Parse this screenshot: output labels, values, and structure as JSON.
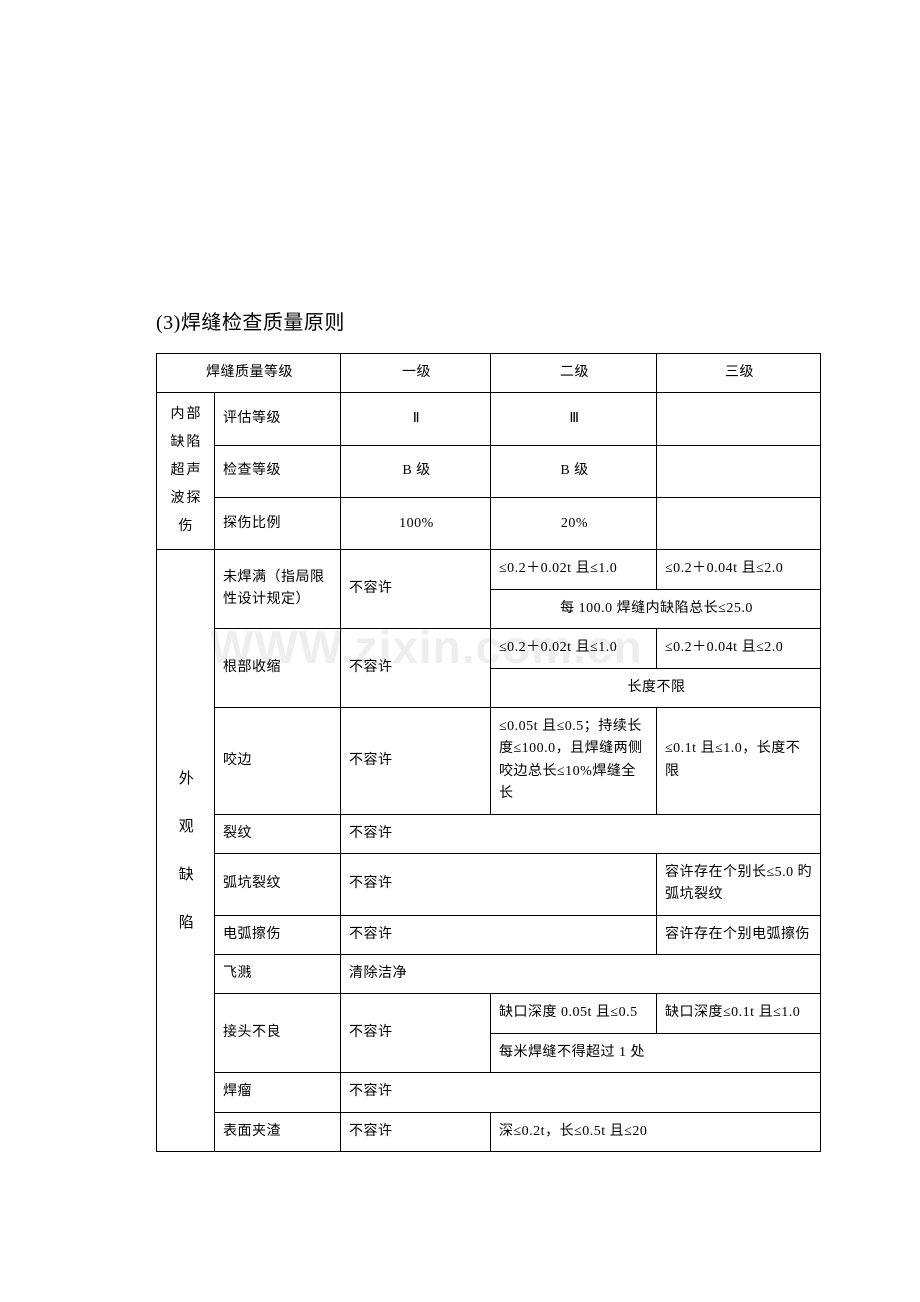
{
  "heading": "(3)焊缝检查质量原则",
  "watermark": "WWW.zixin.com.cn",
  "header": {
    "quality_grade": "焊缝质量等级",
    "level1": "一级",
    "level2": "二级",
    "level3": "三级"
  },
  "internal_defects": {
    "group_label": "内部缺陷超声波探伤",
    "rows": {
      "eval_grade": {
        "label": "评估等级",
        "l1": "Ⅱ",
        "l2": "Ⅲ",
        "l3": ""
      },
      "inspect_grade": {
        "label": "检查等级",
        "l1": "B 级",
        "l2": "B 级",
        "l3": ""
      },
      "ratio": {
        "label": "探伤比例",
        "l1": "100%",
        "l2": "20%",
        "l3": ""
      }
    }
  },
  "appearance": {
    "group_label_1": "外",
    "group_label_2": "观",
    "group_label_3": "缺",
    "group_label_4": "陷",
    "rows": {
      "underfill": {
        "label": "未焊满（指局限性设计规定）",
        "l1": "不容许",
        "l2": "≤0.2＋0.02t 且≤1.0",
        "l3": "≤0.2＋0.04t 且≤2.0",
        "merged": "每 100.0 焊缝内缺陷总长≤25.0"
      },
      "root_shrink": {
        "label": "根部收缩",
        "l1": "不容许",
        "l2": "≤0.2＋0.02t 且≤1.0",
        "l3": "≤0.2＋0.04t 且≤2.0",
        "merged": "长度不限"
      },
      "undercut": {
        "label": "咬边",
        "l1": "不容许",
        "l2": "≤0.05t 且≤0.5；持续长度≤100.0，且焊缝两侧咬边总长≤10%焊缝全长",
        "l3": "≤0.1t 且≤1.0，长度不限"
      },
      "crack": {
        "label": "裂纹",
        "merged": "不容许"
      },
      "crater_crack": {
        "label": "弧坑裂纹",
        "l12": "不容许",
        "l3": "容许存在个别长≤5.0 旳弧坑裂纹"
      },
      "arc_scratch": {
        "label": "电弧擦伤",
        "l12": "不容许",
        "l3": "容许存在个别电弧擦伤"
      },
      "spatter": {
        "label": "飞溅",
        "merged": "清除洁净"
      },
      "bad_joint": {
        "label": "接头不良",
        "l1": "不容许",
        "l2": "缺口深度 0.05t 且≤0.5",
        "l3": "缺口深度≤0.1t 且≤1.0",
        "merged": "每米焊缝不得超过 1 处"
      },
      "overlap": {
        "label": "焊瘤",
        "merged": "不容许"
      },
      "surface_slag": {
        "label": "表面夹渣",
        "l1": "不容许",
        "l23": "深≤0.2t，长≤0.5t 且≤20"
      }
    }
  },
  "styles": {
    "page_bg": "#ffffff",
    "border_color": "#000000",
    "text_color": "#000000",
    "watermark_color": "#eeeeee",
    "font_size_body": 14,
    "font_size_heading": 20
  }
}
